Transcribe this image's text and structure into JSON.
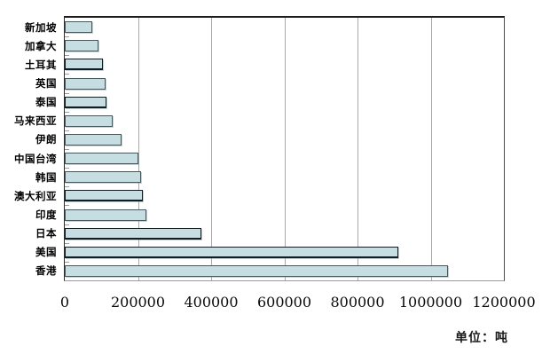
{
  "chart": {
    "unit_label": "单位：吨"
  },
  "chart_data": {
    "type": "bar",
    "orientation": "horizontal",
    "title": "",
    "xlabel": "",
    "ylabel": "",
    "unit": "吨",
    "categories": [
      "新加坡",
      "加拿大",
      "土耳其",
      "英国",
      "泰国",
      "马来西亚",
      "伊朗",
      "中国台湾",
      "韩国",
      "澳大利亚",
      "印度",
      "日本",
      "美国",
      "香港"
    ],
    "values": [
      74000,
      93000,
      104000,
      111000,
      113000,
      132000,
      154000,
      201000,
      208000,
      213000,
      222000,
      373000,
      911000,
      1047000
    ],
    "xlim": [
      0,
      1200000
    ],
    "xticks": [
      0,
      200000,
      400000,
      600000,
      800000,
      1000000,
      1200000
    ],
    "grid": true,
    "legend": "none",
    "bar_fill_color": "#c6dee1",
    "bar_border_color": "#47595d",
    "gridline_color": "#a9a9a9"
  }
}
